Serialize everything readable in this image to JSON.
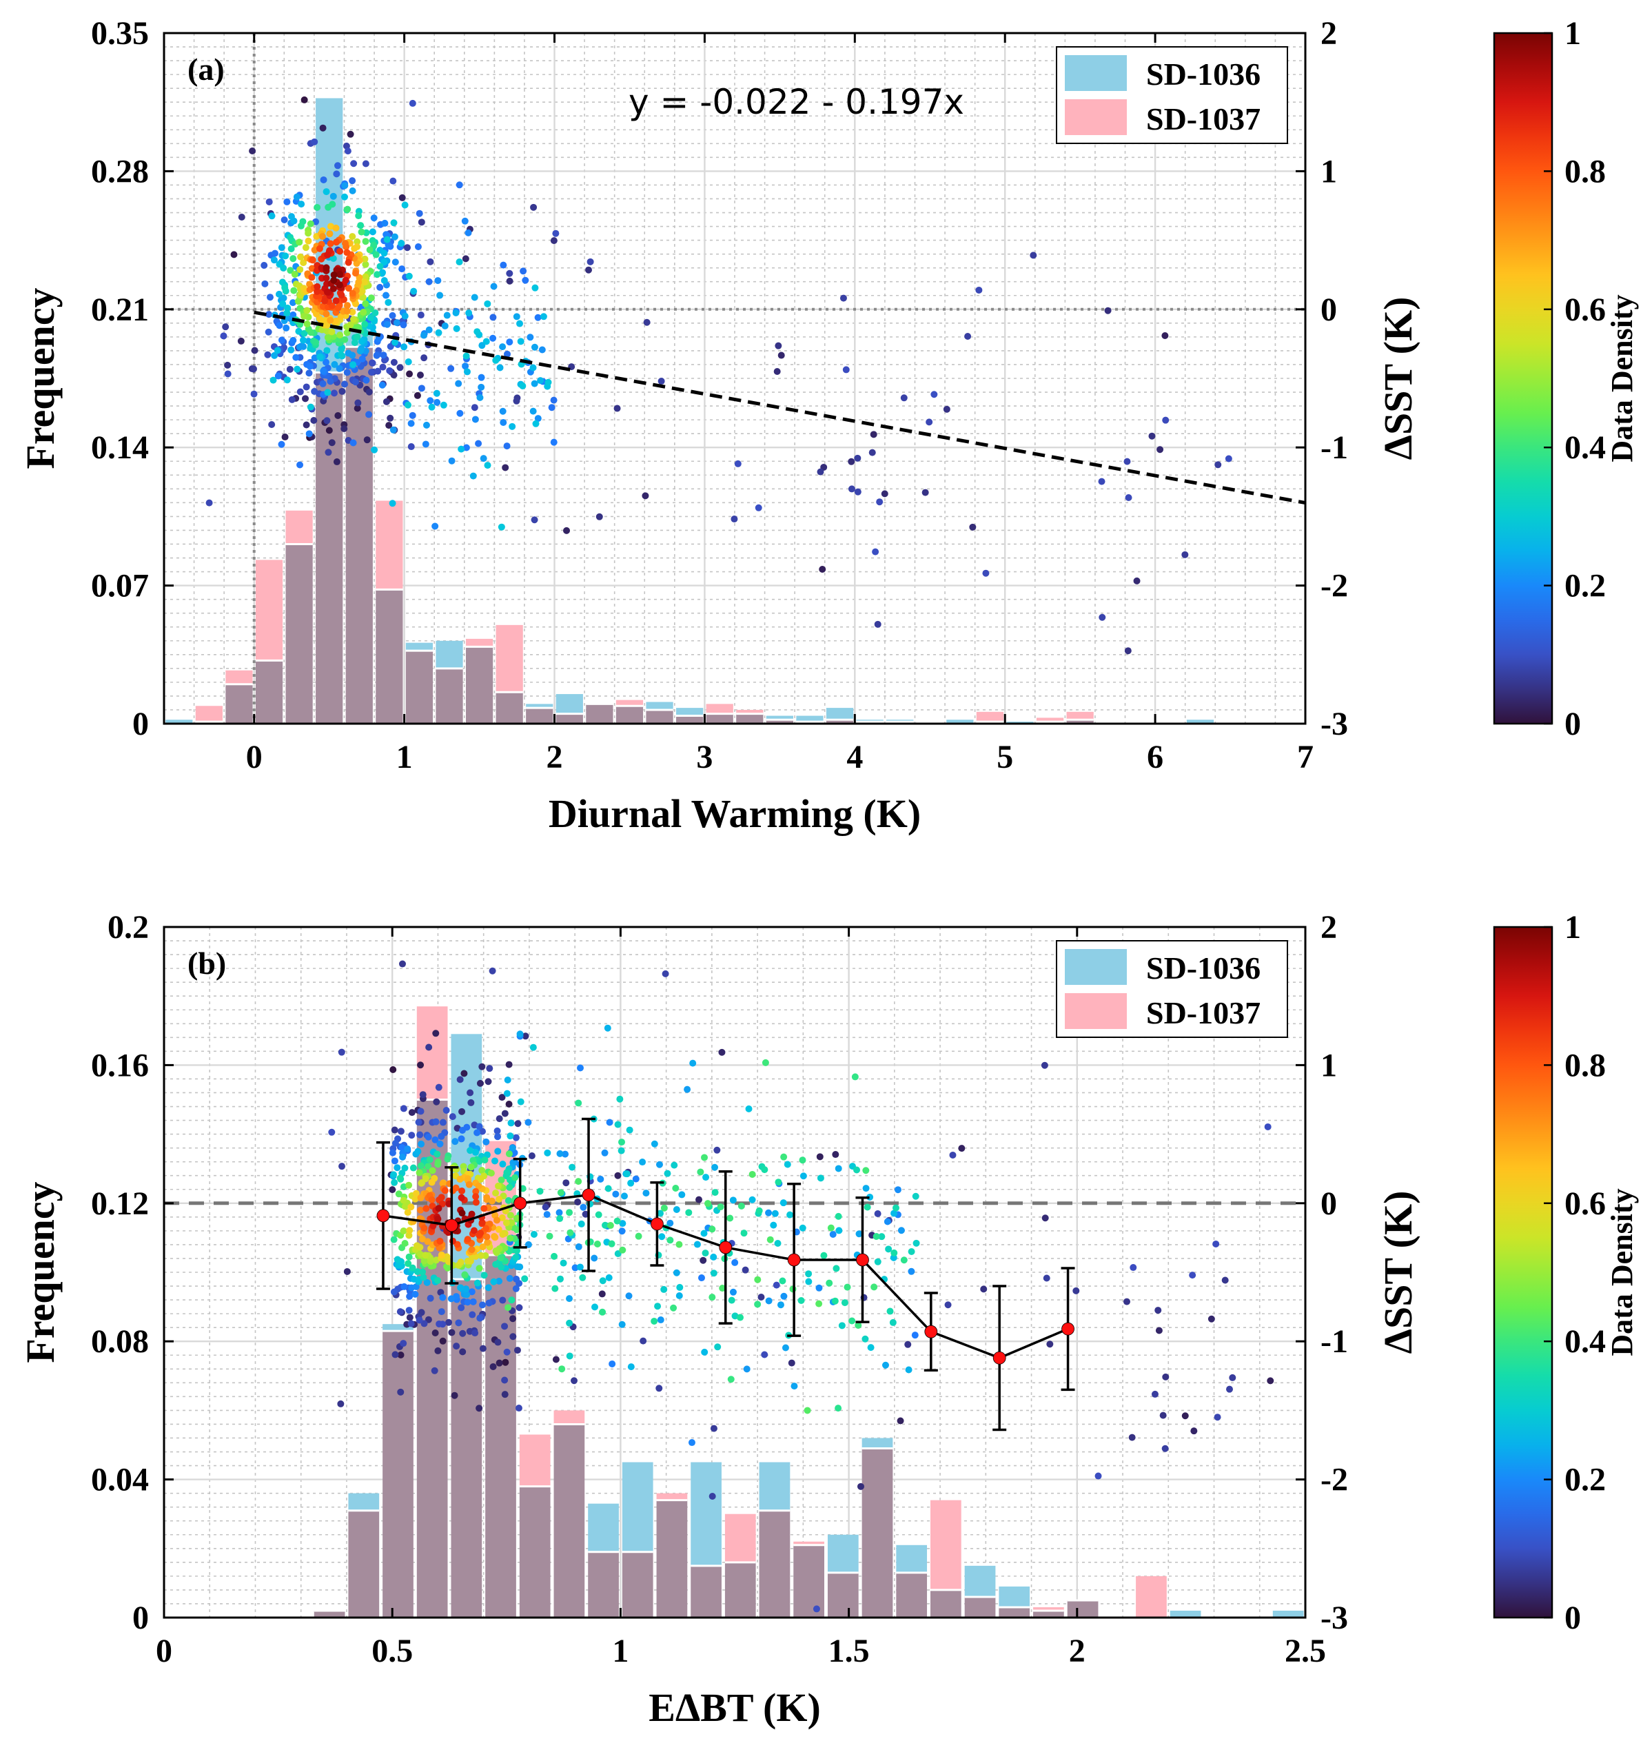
{
  "colors": {
    "sd1036": "#8ecfe6",
    "sd1037": "#ffb3bd",
    "overlap": "#a58c9c",
    "mean_marker": "#ff1010",
    "colormap": [
      "#30123b",
      "#3b4cc0",
      "#1f7bff",
      "#00c3e6",
      "#19e0a0",
      "#6cf04a",
      "#c8e628",
      "#ffcc20",
      "#ff8a15",
      "#ff4a0d",
      "#d21010",
      "#7a0403"
    ]
  },
  "panels": [
    {
      "label": "(a)",
      "equation": "y = -0.022 - 0.197x",
      "legend": [
        "SD-1036",
        "SD-1037"
      ],
      "colorbar": {
        "title": "Data Density",
        "ticks": [
          "0",
          "0.2",
          "0.4",
          "0.6",
          "0.8",
          "1"
        ]
      },
      "xaxis": {
        "title": "Diurnal Warming (K)",
        "ticks": [
          "0",
          "1",
          "2",
          "3",
          "4",
          "5",
          "6",
          "7"
        ]
      },
      "yaxis_left": {
        "title": "Frequency",
        "ticks": [
          "0",
          "0.07",
          "0.14",
          "0.21",
          "0.28",
          "0.35"
        ]
      },
      "yaxis_right": {
        "title": "ΔSST (K)",
        "ticks": [
          "-3",
          "-2",
          "-1",
          "0",
          "1",
          "2"
        ]
      }
    },
    {
      "label": "(b)",
      "legend": [
        "SD-1036",
        "SD-1037"
      ],
      "colorbar": {
        "title": "Data Density",
        "ticks": [
          "0",
          "0.2",
          "0.4",
          "0.6",
          "0.8",
          "1"
        ]
      },
      "xaxis": {
        "title": "EΔBT (K)",
        "ticks": [
          "0",
          "0.5",
          "1",
          "1.5",
          "2",
          "2.5"
        ]
      },
      "yaxis_left": {
        "title": "Frequency",
        "ticks": [
          "0",
          "0.04",
          "0.08",
          "0.12",
          "0.16",
          "0.2"
        ]
      },
      "yaxis_right": {
        "title": "ΔSST (K)",
        "ticks": [
          "-3",
          "-2",
          "-1",
          "0",
          "1",
          "2"
        ]
      }
    }
  ],
  "chart_data": [
    {
      "type": "bar+scatter",
      "xlim": [
        -0.6,
        7
      ],
      "ylim_left": [
        0,
        0.35
      ],
      "ylim_right": [
        -3,
        2
      ],
      "grid": true,
      "minor_grid": true,
      "legend_position": "top-right",
      "bin_width": 0.2,
      "bin_centers": [
        -0.5,
        -0.3,
        -0.1,
        0.1,
        0.3,
        0.5,
        0.7,
        0.9,
        1.1,
        1.3,
        1.5,
        1.7,
        1.9,
        2.1,
        2.3,
        2.5,
        2.7,
        2.9,
        3.1,
        3.3,
        3.5,
        3.7,
        3.9,
        4.1,
        4.3,
        4.5,
        4.7,
        4.9,
        5.1,
        5.3,
        5.5,
        5.7,
        5.9,
        6.1,
        6.3,
        6.5,
        6.7,
        6.9
      ],
      "series": [
        {
          "name": "SD-1036",
          "values": [
            0.002,
            0.001,
            0.02,
            0.032,
            0.091,
            0.317,
            0.201,
            0.068,
            0.041,
            0.042,
            0.039,
            0.016,
            0.01,
            0.015,
            0.01,
            0.009,
            0.011,
            0.008,
            0.005,
            0.005,
            0.004,
            0.004,
            0.008,
            0.002,
            0.002,
            0.001,
            0.002,
            0.001,
            0.001,
            0.001,
            0.002,
            0,
            0,
            0,
            0.002,
            0,
            0,
            0
          ]
        },
        {
          "name": "SD-1037",
          "values": [
            0,
            0.009,
            0.027,
            0.083,
            0.108,
            0.178,
            0.191,
            0.113,
            0.037,
            0.028,
            0.043,
            0.05,
            0.008,
            0.005,
            0.01,
            0.012,
            0.007,
            0.004,
            0.01,
            0.007,
            0.002,
            0.001,
            0.002,
            0.001,
            0.001,
            0.001,
            0,
            0.006,
            0,
            0.003,
            0.006,
            0,
            0,
            0,
            0,
            0,
            0,
            0
          ]
        }
      ],
      "fit_line": {
        "intercept": -0.022,
        "slope": -0.197
      },
      "reference_lines": {
        "x0": 0,
        "y0_right": 0
      }
    },
    {
      "type": "bar+scatter",
      "xlim": [
        0,
        2.5
      ],
      "ylim_left": [
        0,
        0.2
      ],
      "ylim_right": [
        -3,
        2
      ],
      "grid": true,
      "minor_grid": true,
      "legend_position": "top-right",
      "bin_width": 0.075,
      "bin_centers": [
        0.3625,
        0.4375,
        0.5125,
        0.5875,
        0.6625,
        0.7375,
        0.8125,
        0.8875,
        0.9625,
        1.0375,
        1.1125,
        1.1875,
        1.2625,
        1.3375,
        1.4125,
        1.4875,
        1.5625,
        1.6375,
        1.7125,
        1.7875,
        1.8625,
        1.9375,
        2.0125,
        2.0875,
        2.1625,
        2.2375,
        2.3125,
        2.3875,
        2.4625
      ],
      "series": [
        {
          "name": "SD-1036",
          "values": [
            0.002,
            0.036,
            0.085,
            0.15,
            0.169,
            0.105,
            0.038,
            0.056,
            0.033,
            0.045,
            0.034,
            0.045,
            0.016,
            0.045,
            0.021,
            0.024,
            0.052,
            0.021,
            0.008,
            0.015,
            0.009,
            0.002,
            0.005,
            0,
            0,
            0.002,
            0,
            0,
            0.002
          ]
        },
        {
          "name": "SD-1037",
          "values": [
            0.002,
            0.031,
            0.083,
            0.177,
            0.098,
            0.138,
            0.053,
            0.06,
            0.019,
            0.019,
            0.036,
            0.015,
            0.03,
            0.031,
            0.022,
            0.013,
            0.049,
            0.013,
            0.034,
            0.006,
            0.003,
            0.003,
            0.005,
            0,
            0.012,
            0,
            0,
            0,
            0
          ]
        }
      ],
      "binned_means": {
        "x": [
          0.48,
          0.63,
          0.78,
          0.93,
          1.08,
          1.23,
          1.38,
          1.53,
          1.68,
          1.83,
          1.98
        ],
        "y": [
          -0.09,
          -0.16,
          0.0,
          0.06,
          -0.15,
          -0.32,
          -0.41,
          -0.41,
          -0.93,
          -1.12,
          -0.91
        ],
        "err": [
          0.53,
          0.42,
          0.32,
          0.55,
          0.3,
          0.55,
          0.55,
          0.45,
          0.28,
          0.52,
          0.44
        ]
      },
      "reference_lines": {
        "y0_right": 0
      }
    }
  ]
}
